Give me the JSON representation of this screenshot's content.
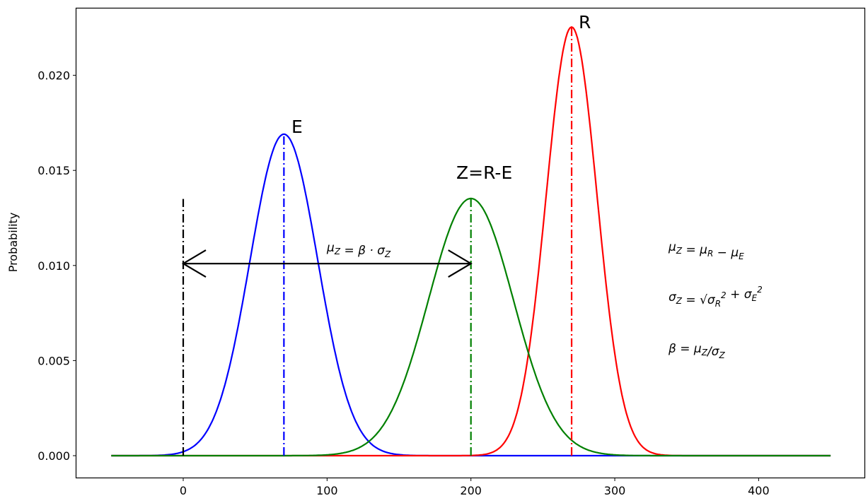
{
  "chart_data": {
    "type": "line",
    "title": "",
    "xlabel": "",
    "ylabel": "Probability",
    "xlim": [
      -75,
      475
    ],
    "ylim": [
      -0.0011,
      0.0236
    ],
    "xticks": [
      0,
      100,
      200,
      300,
      400
    ],
    "xtick_labels": [
      "0",
      "100",
      "200",
      "300",
      "400"
    ],
    "yticks": [
      0.0,
      0.005,
      0.01,
      0.015,
      0.02
    ],
    "ytick_labels": [
      "0.000",
      "0.005",
      "0.010",
      "0.015",
      "0.020"
    ],
    "x_range": [
      -50,
      450
    ],
    "grid": false,
    "series": [
      {
        "name": "E",
        "distribution": "normal",
        "mean": 70,
        "std": 23.6,
        "color": "#0000ff",
        "label": "E"
      },
      {
        "name": "R",
        "distribution": "normal",
        "mean": 270,
        "std": 17.7,
        "color": "#ff0000",
        "label": "R"
      },
      {
        "name": "Z",
        "distribution": "normal",
        "mean": 200,
        "std": 29.5,
        "color": "#008000",
        "label": "Z=R-E"
      }
    ],
    "reference_line": {
      "x": 0,
      "y_top": 0.0135,
      "color": "#000000"
    },
    "arrow": {
      "x_from": 0,
      "x_to": 200,
      "y": 0.0101,
      "label": [
        {
          "t": "μ"
        },
        {
          "s": "Z"
        },
        {
          "t": " = β · σ"
        },
        {
          "s": "Z"
        }
      ]
    },
    "annotations": [
      [
        {
          "t": "μ"
        },
        {
          "s": "Z"
        },
        {
          "t": " = μ"
        },
        {
          "s": "R"
        },
        {
          "t": " − μ"
        },
        {
          "s": "E"
        }
      ],
      [
        {
          "t": "σ"
        },
        {
          "s": "Z"
        },
        {
          "t": " = √"
        },
        {
          "t": "σ"
        },
        {
          "s": "R"
        },
        {
          "p": "2"
        },
        {
          "t": " + σ"
        },
        {
          "s": "E"
        },
        {
          "p": "2"
        }
      ],
      [
        {
          "t": "β = μ"
        },
        {
          "s": "Z"
        },
        {
          "t": "/σ"
        },
        {
          "s": "Z"
        }
      ]
    ]
  }
}
